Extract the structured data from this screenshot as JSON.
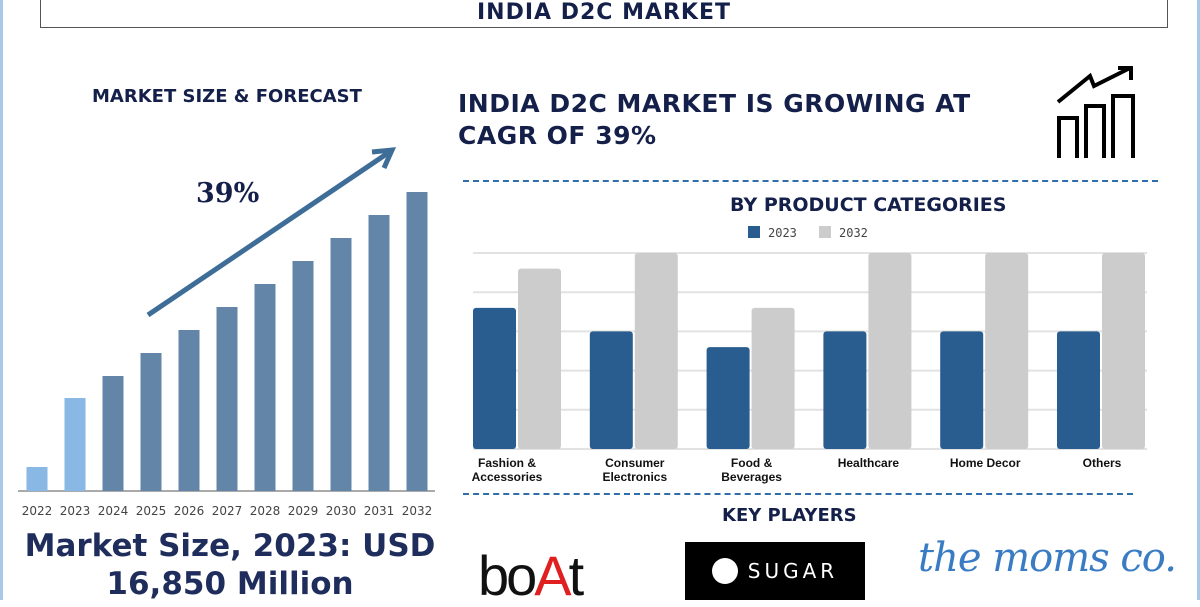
{
  "title": "INDIA D2C MARKET",
  "left": {
    "heading": "MARKET SIZE & FORECAST",
    "cagr_label": "39%",
    "market_size": "Market Size, 2023: USD 16,850 Million"
  },
  "right": {
    "headline_line1": "INDIA D2C MARKET IS GROWING AT",
    "headline_line2": "CAGR OF 39%",
    "icon": "growth-chart-icon",
    "categories_heading": "BY PRODUCT CATEGORIES",
    "key_players_heading": "KEY PLAYERS",
    "players": [
      {
        "name": "boAt"
      },
      {
        "name": "SUGAR"
      },
      {
        "name": "the moms co."
      }
    ]
  },
  "colors": {
    "navy": "#14204a",
    "bar_dark": "#6385a8",
    "bar_light": "#8ab8e4",
    "series_2023": "#2a5d8f",
    "series_2032": "#cccccc",
    "boat_red": "#e02020"
  },
  "chart_data": [
    {
      "type": "bar",
      "title": "MARKET SIZE & FORECAST",
      "categories": [
        "2022",
        "2023",
        "2024",
        "2025",
        "2026",
        "2027",
        "2028",
        "2029",
        "2030",
        "2031",
        "2032"
      ],
      "values": [
        24,
        93,
        115,
        138,
        161,
        184,
        207,
        230,
        253,
        276,
        299
      ],
      "highlighted": [
        "2022",
        "2023"
      ],
      "grid": false,
      "annotation": "39%"
    },
    {
      "type": "bar",
      "title": "BY PRODUCT CATEGORIES",
      "categories": [
        "Fashion & Accessories",
        "Consumer Electronics",
        "Food & Beverages",
        "Healthcare",
        "Home Decor",
        "Others"
      ],
      "series": [
        {
          "name": "2023",
          "values": [
            3.6,
            3.0,
            2.6,
            3.0,
            3.0,
            3.0
          ]
        },
        {
          "name": "2032",
          "values": [
            4.6,
            5.0,
            3.6,
            5.0,
            5.0,
            5.0
          ]
        }
      ],
      "ylim": [
        0,
        5
      ],
      "grid": true,
      "legend": "top-center"
    }
  ]
}
